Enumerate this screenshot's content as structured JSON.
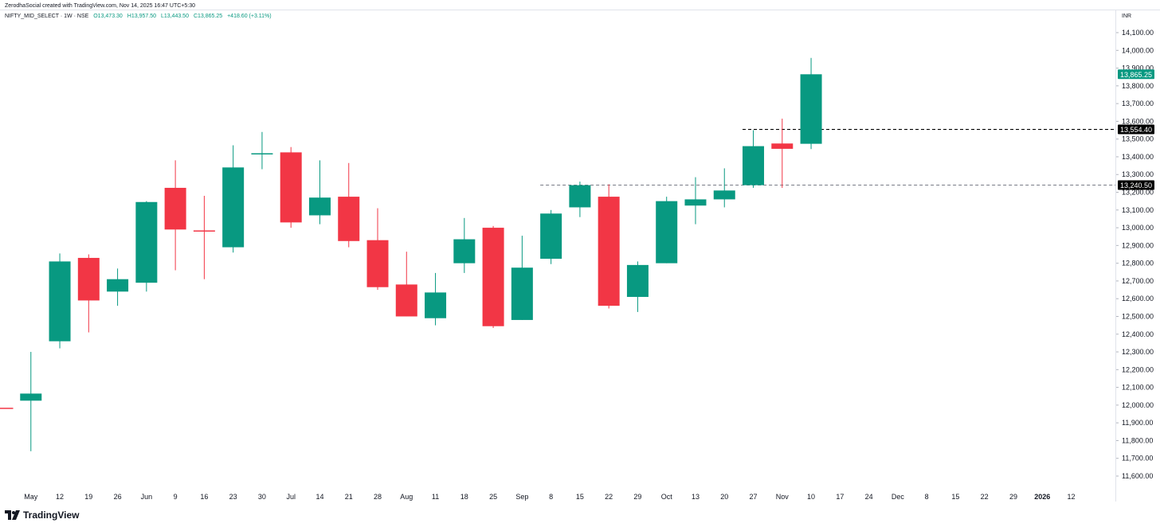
{
  "header": {
    "attribution": "ZerodhaSocial created with TradingView.com, Nov 14, 2025 16:47 UTC+5:30"
  },
  "legend": {
    "symbol": "NIFTY_MID_SELECT · 1W · NSE",
    "open": "O13,473.30",
    "high": "H13,957.50",
    "low": "L13,443.50",
    "close": "C13,865.25",
    "change": "+418.60 (+3.11%)"
  },
  "currency": "INR",
  "branding": {
    "logo_text": "TradingView"
  },
  "colors": {
    "up": "#089981",
    "down": "#f23645",
    "text": "#131722",
    "last_price_bg": "#089981",
    "level_bg": "#000000"
  },
  "chart_data": {
    "type": "candlestick",
    "title": "NIFTY_MID_SELECT · 1W · NSE",
    "ylim": [
      11550,
      14180
    ],
    "y_ticks": [
      "14,100.00",
      "14,000.00",
      "13,900.00",
      "13,800.00",
      "13,700.00",
      "13,600.00",
      "13,500.00",
      "13,400.00",
      "13,300.00",
      "13,200.00",
      "13,100.00",
      "13,000.00",
      "12,900.00",
      "12,800.00",
      "12,700.00",
      "12,600.00",
      "12,500.00",
      "12,400.00",
      "12,300.00",
      "12,200.00",
      "12,100.00",
      "12,000.00",
      "11,900.00",
      "11,800.00",
      "11,700.00",
      "11,600.00"
    ],
    "x_tick_labels": [
      "May",
      "12",
      "19",
      "26",
      "Jun",
      "9",
      "16",
      "23",
      "30",
      "Jul",
      "14",
      "21",
      "28",
      "Aug",
      "11",
      "18",
      "25",
      "Sep",
      "8",
      "15",
      "22",
      "29",
      "Oct",
      "13",
      "20",
      "27",
      "Nov",
      "10",
      "17",
      "24",
      "Dec",
      "8",
      "15",
      "22",
      "29",
      "2026",
      "12"
    ],
    "candles": [
      {
        "o": 11985,
        "h": 11985,
        "l": 11985,
        "c": 11980
      },
      {
        "o": 12025,
        "h": 12300,
        "l": 11740,
        "c": 12065
      },
      {
        "o": 12360,
        "h": 12855,
        "l": 12320,
        "c": 12810
      },
      {
        "o": 12830,
        "h": 12850,
        "l": 12410,
        "c": 12590
      },
      {
        "o": 12640,
        "h": 12770,
        "l": 12560,
        "c": 12710
      },
      {
        "o": 12690,
        "h": 13150,
        "l": 12640,
        "c": 13145
      },
      {
        "o": 13225,
        "h": 13380,
        "l": 12760,
        "c": 12990
      },
      {
        "o": 12985,
        "h": 13180,
        "l": 12710,
        "c": 12980
      },
      {
        "o": 12890,
        "h": 13465,
        "l": 12860,
        "c": 13340
      },
      {
        "o": 13420,
        "h": 13540,
        "l": 13330,
        "c": 13420
      },
      {
        "o": 13425,
        "h": 13455,
        "l": 13000,
        "c": 13030
      },
      {
        "o": 13070,
        "h": 13380,
        "l": 13020,
        "c": 13170
      },
      {
        "o": 13175,
        "h": 13365,
        "l": 12890,
        "c": 12925
      },
      {
        "o": 12930,
        "h": 13110,
        "l": 12650,
        "c": 12665
      },
      {
        "o": 12680,
        "h": 12865,
        "l": 12500,
        "c": 12500
      },
      {
        "o": 12490,
        "h": 12745,
        "l": 12450,
        "c": 12635
      },
      {
        "o": 12800,
        "h": 13055,
        "l": 12745,
        "c": 12935
      },
      {
        "o": 13000,
        "h": 13010,
        "l": 12435,
        "c": 12445
      },
      {
        "o": 12480,
        "h": 12955,
        "l": 12480,
        "c": 12775
      },
      {
        "o": 12825,
        "h": 13100,
        "l": 12795,
        "c": 13080
      },
      {
        "o": 13115,
        "h": 13260,
        "l": 13060,
        "c": 13240
      },
      {
        "o": 13175,
        "h": 13245,
        "l": 12545,
        "c": 12560
      },
      {
        "o": 12610,
        "h": 12810,
        "l": 12525,
        "c": 12790
      },
      {
        "o": 12800,
        "h": 13175,
        "l": 12800,
        "c": 13150
      },
      {
        "o": 13125,
        "h": 13285,
        "l": 13020,
        "c": 13160
      },
      {
        "o": 13160,
        "h": 13335,
        "l": 13115,
        "c": 13210
      },
      {
        "o": 13240,
        "h": 13550,
        "l": 13225,
        "c": 13460
      },
      {
        "o": 13475,
        "h": 13615,
        "l": 13225,
        "c": 13445
      },
      {
        "o": 13473.3,
        "h": 13957.5,
        "l": 13443.5,
        "c": 13865.25
      }
    ],
    "levels": [
      {
        "value": 13554.4,
        "label": "13,554.40",
        "style": "dashed"
      },
      {
        "value": 13240.5,
        "label": "13,240.50",
        "style": "dashed"
      }
    ],
    "last_price": {
      "value": 13865.25,
      "label": "13,865.25"
    },
    "grid": false
  }
}
